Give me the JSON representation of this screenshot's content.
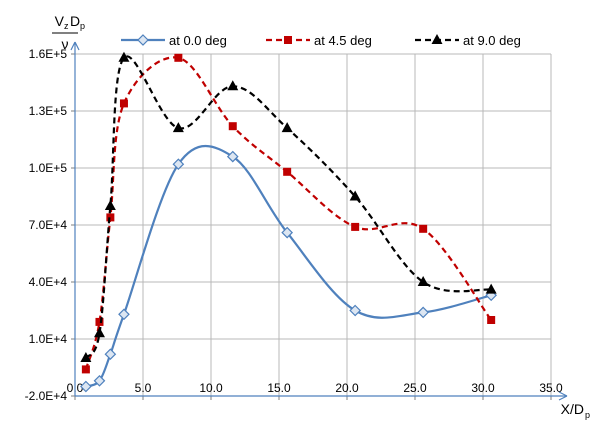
{
  "chart_data": {
    "type": "line",
    "ylabel_top": "V",
    "ylabel_top_sub": "z",
    "ylabel_top_second": "D",
    "ylabel_top_second_sub": "p",
    "ylabel_bottom": "ν",
    "xlabel_main": "X/D",
    "xlabel_sub": "p",
    "xlim": [
      0,
      35
    ],
    "ylim": [
      -20000,
      160000
    ],
    "x_ticks": [
      {
        "value": 0,
        "label": "0.0"
      },
      {
        "value": 5,
        "label": "5.0"
      },
      {
        "value": 10,
        "label": "10.0"
      },
      {
        "value": 15,
        "label": "15.0"
      },
      {
        "value": 20,
        "label": "20.0"
      },
      {
        "value": 25,
        "label": "25.0"
      },
      {
        "value": 30,
        "label": "30.0"
      },
      {
        "value": 35,
        "label": "35.0"
      }
    ],
    "y_ticks": [
      {
        "value": -20000,
        "label": "-2.0E+4"
      },
      {
        "value": 10000,
        "label": "1.0E+4"
      },
      {
        "value": 40000,
        "label": "4.0E+4"
      },
      {
        "value": 70000,
        "label": "7.0E+4"
      },
      {
        "value": 100000,
        "label": "1.0E+5"
      },
      {
        "value": 130000,
        "label": "1.3E+5"
      },
      {
        "value": 160000,
        "label": "1.6E+5"
      }
    ],
    "grid": true,
    "legend_position": "top",
    "series": [
      {
        "name": "at 0.0 deg",
        "color": "#4f81bd",
        "dash": "solid",
        "marker": "diamond",
        "x": [
          0.8,
          1.8,
          2.6,
          3.6,
          7.6,
          11.6,
          15.6,
          20.6,
          25.6,
          30.6
        ],
        "y": [
          -15000,
          -12000,
          2000,
          23000,
          102000,
          106000,
          66000,
          25000,
          24000,
          33000
        ]
      },
      {
        "name": "at 4.5 deg",
        "color": "#c00000",
        "dash": "dashed",
        "marker": "square",
        "x": [
          0.8,
          1.8,
          2.6,
          3.6,
          7.6,
          11.6,
          15.6,
          20.6,
          25.6,
          30.6
        ],
        "y": [
          -6000,
          19000,
          74000,
          134000,
          158000,
          122000,
          98000,
          69000,
          68000,
          20000
        ]
      },
      {
        "name": "at 9.0 deg",
        "color": "#000000",
        "dash": "dashed",
        "marker": "triangle",
        "x": [
          0.8,
          1.8,
          2.6,
          3.6,
          7.6,
          11.6,
          15.6,
          20.6,
          25.6,
          30.6
        ],
        "y": [
          0,
          13000,
          80000,
          158000,
          121000,
          143000,
          121000,
          85000,
          40000,
          36000
        ]
      }
    ]
  }
}
